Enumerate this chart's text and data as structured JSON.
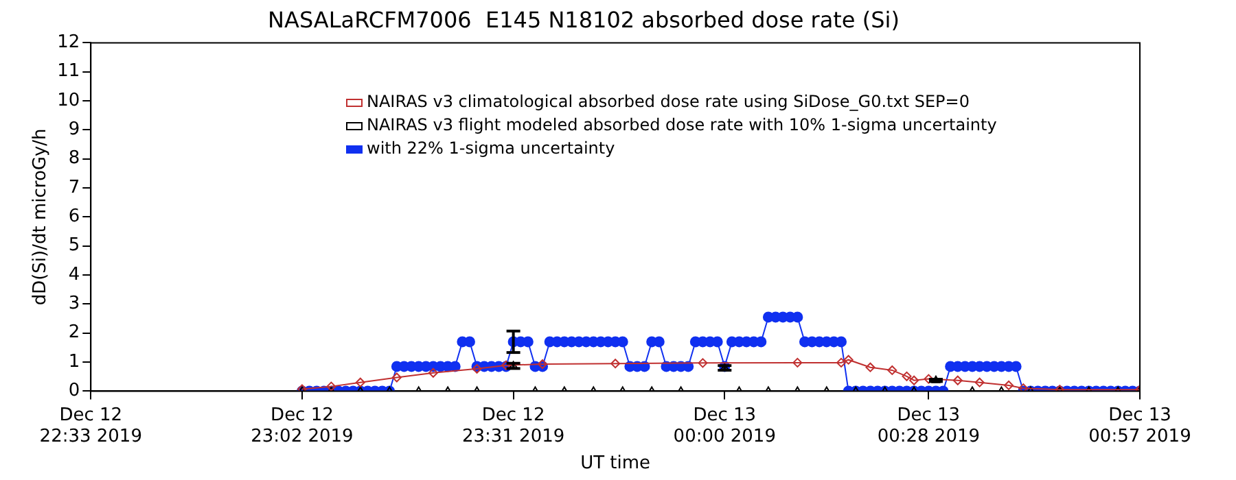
{
  "chart_data": {
    "type": "line",
    "title": "NASALaRCFM7006  E145 N18102 absorbed dose rate (Si)",
    "xlabel": "UT time",
    "ylabel": "dD(Si)/dt microGy/h",
    "xlim": [
      "2019-12-12T22:33",
      "2019-12-13T00:57"
    ],
    "xticks": [
      {
        "value": "2019-12-12T22:33",
        "label": "Dec 12 22:33 2019"
      },
      {
        "value": "2019-12-12T23:02",
        "label": "Dec 12 23:02 2019"
      },
      {
        "value": "2019-12-12T23:31",
        "label": "Dec 12 23:31 2019"
      },
      {
        "value": "2019-12-13T00:00",
        "label": "Dec 13 00:00 2019"
      },
      {
        "value": "2019-12-13T00:28",
        "label": "Dec 13 00:28 2019"
      },
      {
        "value": "2019-12-13T00:57",
        "label": "Dec 13 00:57 2019"
      }
    ],
    "ylim": [
      0,
      12
    ],
    "yticks": [
      0,
      1,
      2,
      3,
      4,
      5,
      6,
      7,
      8,
      9,
      10,
      11,
      12
    ],
    "grid": false,
    "legend": "top",
    "series": [
      {
        "name": "NAIRAS v3 climatological absorbed dose rate using SiDose_G0.txt SEP=0",
        "color": "#c03030",
        "type": "line",
        "marker": "diamond",
        "x": [
          "2019-12-12T23:02",
          "2019-12-12T23:06",
          "2019-12-12T23:10",
          "2019-12-12T23:15",
          "2019-12-12T23:20",
          "2019-12-12T23:26",
          "2019-12-12T23:30",
          "2019-12-12T23:35",
          "2019-12-12T23:45",
          "2019-12-12T23:57",
          "2019-12-13T00:10",
          "2019-12-13T00:16",
          "2019-12-13T00:17",
          "2019-12-13T00:20",
          "2019-12-13T00:23",
          "2019-12-13T00:25",
          "2019-12-13T00:26",
          "2019-12-13T00:28",
          "2019-12-13T00:32",
          "2019-12-13T00:35",
          "2019-12-13T00:39",
          "2019-12-13T00:41",
          "2019-12-13T00:46",
          "2019-12-13T00:57"
        ],
        "values": [
          0.07,
          0.16,
          0.3,
          0.47,
          0.63,
          0.77,
          0.89,
          0.93,
          0.95,
          0.97,
          0.98,
          0.98,
          1.08,
          0.82,
          0.72,
          0.51,
          0.37,
          0.42,
          0.37,
          0.3,
          0.2,
          0.1,
          0.05,
          0.05
        ]
      },
      {
        "name": "NAIRAS v3 flight modeled absorbed dose rate with 10% 1-sigma uncertainty",
        "color": "#000000",
        "type": "scatter",
        "marker": "triangle",
        "x": [
          "2019-12-12T23:02",
          "2019-12-12T23:06",
          "2019-12-12T23:10",
          "2019-12-12T23:14",
          "2019-12-12T23:18",
          "2019-12-12T23:22",
          "2019-12-12T23:26",
          "2019-12-12T23:31",
          "2019-12-12T23:34",
          "2019-12-12T23:38",
          "2019-12-12T23:42",
          "2019-12-12T23:46",
          "2019-12-12T23:50",
          "2019-12-12T23:54",
          "2019-12-13T00:00",
          "2019-12-13T00:02",
          "2019-12-13T00:06",
          "2019-12-13T00:10",
          "2019-12-13T00:14",
          "2019-12-13T00:18",
          "2019-12-13T00:22",
          "2019-12-13T00:26",
          "2019-12-13T00:29",
          "2019-12-13T00:34",
          "2019-12-13T00:38",
          "2019-12-13T00:42",
          "2019-12-13T00:46",
          "2019-12-13T00:50",
          "2019-12-13T00:54",
          "2019-12-13T00:57"
        ],
        "values": [
          0,
          0,
          0,
          0,
          0,
          0,
          0,
          0.87,
          0,
          0,
          0,
          0,
          0,
          0,
          0.8,
          0,
          0,
          0,
          0,
          0,
          0,
          0,
          0.37,
          0,
          0,
          0,
          0,
          0,
          0,
          0
        ],
        "errors": [
          null,
          null,
          null,
          null,
          null,
          null,
          null,
          0.09,
          null,
          null,
          null,
          null,
          null,
          null,
          0.08,
          null,
          null,
          null,
          null,
          null,
          null,
          null,
          0.04,
          null,
          null,
          null,
          null,
          null,
          null,
          null
        ]
      },
      {
        "name": "with 22% 1-sigma uncertainty",
        "color": "#1030f0",
        "type": "line",
        "marker": "circle",
        "x": [
          "2019-12-12T23:02",
          "2019-12-12T23:03",
          "2019-12-12T23:04",
          "2019-12-12T23:05",
          "2019-12-12T23:06",
          "2019-12-12T23:07",
          "2019-12-12T23:08",
          "2019-12-12T23:09",
          "2019-12-12T23:10",
          "2019-12-12T23:11",
          "2019-12-12T23:12",
          "2019-12-12T23:13",
          "2019-12-12T23:14",
          "2019-12-12T23:15",
          "2019-12-12T23:16",
          "2019-12-12T23:17",
          "2019-12-12T23:18",
          "2019-12-12T23:19",
          "2019-12-12T23:20",
          "2019-12-12T23:21",
          "2019-12-12T23:22",
          "2019-12-12T23:23",
          "2019-12-12T23:24",
          "2019-12-12T23:25",
          "2019-12-12T23:26",
          "2019-12-12T23:27",
          "2019-12-12T23:28",
          "2019-12-12T23:29",
          "2019-12-12T23:30",
          "2019-12-12T23:31",
          "2019-12-12T23:32",
          "2019-12-12T23:33",
          "2019-12-12T23:34",
          "2019-12-12T23:35",
          "2019-12-12T23:36",
          "2019-12-12T23:37",
          "2019-12-12T23:38",
          "2019-12-12T23:39",
          "2019-12-12T23:40",
          "2019-12-12T23:41",
          "2019-12-12T23:42",
          "2019-12-12T23:43",
          "2019-12-12T23:44",
          "2019-12-12T23:45",
          "2019-12-12T23:46",
          "2019-12-12T23:47",
          "2019-12-12T23:48",
          "2019-12-12T23:49",
          "2019-12-12T23:50",
          "2019-12-12T23:51",
          "2019-12-12T23:52",
          "2019-12-12T23:53",
          "2019-12-12T23:54",
          "2019-12-12T23:55",
          "2019-12-12T23:56",
          "2019-12-12T23:57",
          "2019-12-12T23:58",
          "2019-12-12T23:59",
          "2019-12-13T00:00",
          "2019-12-13T00:01",
          "2019-12-13T00:02",
          "2019-12-13T00:03",
          "2019-12-13T00:04",
          "2019-12-13T00:05",
          "2019-12-13T00:06",
          "2019-12-13T00:07",
          "2019-12-13T00:08",
          "2019-12-13T00:09",
          "2019-12-13T00:10",
          "2019-12-13T00:11",
          "2019-12-13T00:12",
          "2019-12-13T00:13",
          "2019-12-13T00:14",
          "2019-12-13T00:15",
          "2019-12-13T00:16",
          "2019-12-13T00:17",
          "2019-12-13T00:18",
          "2019-12-13T00:19",
          "2019-12-13T00:20",
          "2019-12-13T00:21",
          "2019-12-13T00:22",
          "2019-12-13T00:23",
          "2019-12-13T00:24",
          "2019-12-13T00:25",
          "2019-12-13T00:26",
          "2019-12-13T00:27",
          "2019-12-13T00:28",
          "2019-12-13T00:29",
          "2019-12-13T00:30",
          "2019-12-13T00:31",
          "2019-12-13T00:32",
          "2019-12-13T00:33",
          "2019-12-13T00:34",
          "2019-12-13T00:35",
          "2019-12-13T00:36",
          "2019-12-13T00:37",
          "2019-12-13T00:38",
          "2019-12-13T00:39",
          "2019-12-13T00:40",
          "2019-12-13T00:41",
          "2019-12-13T00:42",
          "2019-12-13T00:43",
          "2019-12-13T00:44",
          "2019-12-13T00:45",
          "2019-12-13T00:46",
          "2019-12-13T00:47",
          "2019-12-13T00:48",
          "2019-12-13T00:49",
          "2019-12-13T00:50",
          "2019-12-13T00:51",
          "2019-12-13T00:52",
          "2019-12-13T00:53",
          "2019-12-13T00:54",
          "2019-12-13T00:55",
          "2019-12-13T00:56",
          "2019-12-13T00:57"
        ],
        "values": [
          0,
          0,
          0,
          0,
          0,
          0,
          0,
          0,
          0,
          0,
          0,
          0,
          0,
          0.85,
          0.85,
          0.85,
          0.85,
          0.85,
          0.85,
          0.85,
          0.85,
          0.85,
          1.7,
          1.7,
          0.85,
          0.85,
          0.85,
          0.85,
          0.85,
          1.7,
          1.7,
          1.7,
          0.85,
          0.85,
          1.7,
          1.7,
          1.7,
          1.7,
          1.7,
          1.7,
          1.7,
          1.7,
          1.7,
          1.7,
          1.7,
          0.85,
          0.85,
          0.85,
          1.7,
          1.7,
          0.85,
          0.85,
          0.85,
          0.85,
          1.7,
          1.7,
          1.7,
          1.7,
          0.85,
          1.7,
          1.7,
          1.7,
          1.7,
          1.7,
          2.55,
          2.55,
          2.55,
          2.55,
          2.55,
          1.7,
          1.7,
          1.7,
          1.7,
          1.7,
          1.7,
          0,
          0,
          0,
          0,
          0,
          0,
          0,
          0,
          0,
          0,
          0,
          0,
          0,
          0,
          0.85,
          0.85,
          0.85,
          0.85,
          0.85,
          0.85,
          0.85,
          0.85,
          0.85,
          0.85,
          0,
          0,
          0,
          0,
          0,
          0,
          0,
          0,
          0,
          0,
          0,
          0,
          0,
          0,
          0,
          0,
          0
        ],
        "errors": [
          null,
          null,
          null,
          null,
          null,
          null,
          null,
          null,
          null,
          null,
          null,
          null,
          null,
          null,
          null,
          null,
          null,
          null,
          null,
          null,
          null,
          null,
          null,
          null,
          null,
          null,
          null,
          null,
          null,
          0.37,
          null,
          null,
          null,
          null,
          null,
          null,
          null,
          null,
          null,
          null,
          null,
          null,
          null,
          null,
          null,
          null,
          null,
          null,
          null,
          null,
          null,
          null,
          null,
          null,
          null,
          null,
          null,
          null,
          null,
          null,
          null,
          null,
          null,
          null,
          null,
          null,
          null,
          null,
          null,
          null,
          null,
          null,
          null,
          null,
          null,
          null,
          null,
          null,
          null,
          null,
          null,
          null,
          null,
          null,
          null,
          null,
          null,
          null,
          null,
          null,
          null,
          null,
          null,
          null,
          null,
          null,
          null,
          null,
          null,
          null,
          null,
          null,
          null,
          null,
          null,
          null,
          null,
          null,
          null,
          null,
          null,
          null,
          null,
          null,
          null,
          null
        ]
      }
    ]
  }
}
